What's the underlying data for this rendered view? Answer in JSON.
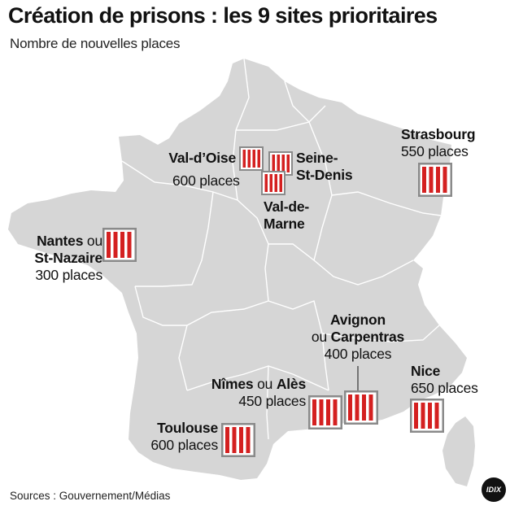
{
  "title": "Création de prisons : les 9 sites prioritaires",
  "subtitle": "Nombre de nouvelles places",
  "sites": {
    "val_doise": {
      "name": "Val-d’Oise",
      "places": "600 places"
    },
    "seine_st_denis": {
      "name_line1": "Seine-",
      "name_line2": "St-Denis"
    },
    "val_de_marne": {
      "name_line1": "Val-de-",
      "name_line2": "Marne"
    },
    "strasbourg": {
      "name": "Strasbourg",
      "places": "550 places"
    },
    "nantes": {
      "name_a": "Nantes",
      "connector": "ou",
      "name_b": "St-Nazaire",
      "places": "300 places"
    },
    "avignon": {
      "name_a": "Avignon",
      "connector": "ou",
      "name_b": "Carpentras",
      "places": "400 places"
    },
    "nimes": {
      "name_a": "Nîmes",
      "connector": "ou",
      "name_b": "Alès",
      "places": "450 places"
    },
    "nice": {
      "name": "Nice",
      "places": "650 places"
    },
    "toulouse": {
      "name": "Toulouse",
      "places": "600 places"
    }
  },
  "source": "Sources : Gouvernement/Médias",
  "logo": "IDIX",
  "colors": {
    "land": "#d6d6d6",
    "border": "#ffffff",
    "prison_bar": "#d42020",
    "prison_frame": "#8a8a8a",
    "text": "#111111"
  },
  "icon": "prison-bars-icon"
}
